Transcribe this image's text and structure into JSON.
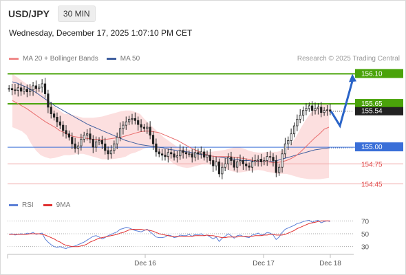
{
  "header": {
    "symbol": "USD/JPY",
    "timeframe": "30 MIN",
    "datetime": "Wednesday, December 17, 2025 1:07:10 PM CET"
  },
  "legend": {
    "ma20_label": "MA 20 + Bollinger Bands",
    "ma50_label": "MA 50",
    "ma20_color": "#f08a8a",
    "ma50_color": "#3f5f9f",
    "copyright": "Research © 2025 Trading Central"
  },
  "rsi_legend": {
    "rsi_label": "RSI",
    "ma_label": "9MA",
    "rsi_color": "#5b7fd6",
    "ma_color": "#e03030"
  },
  "chart_data": [
    {
      "type": "candlestick",
      "title": "USD/JPY 30 MIN",
      "y_range": [
        154.3,
        156.3
      ],
      "levels": [
        {
          "value": 156.1,
          "label": "156.10",
          "color": "#4aa30a",
          "kind": "resistance"
        },
        {
          "value": 155.65,
          "label": "155.65",
          "color": "#4aa30a",
          "kind": "resistance"
        },
        {
          "value": 155.54,
          "label": "155.54",
          "color": "#222222",
          "kind": "last-price"
        },
        {
          "value": 155.0,
          "label": "155.00",
          "color": "#3a6fd8",
          "kind": "pivot"
        },
        {
          "value": 154.75,
          "label": "154.75",
          "color": "#f0a0a0",
          "kind": "support"
        },
        {
          "value": 154.45,
          "label": "154.45",
          "color": "#f0a0a0",
          "kind": "support"
        }
      ],
      "x_ticks": [
        "Dec 16",
        "Dec 17",
        "Dec 18"
      ],
      "close": [
        155.88,
        155.86,
        155.85,
        155.89,
        155.84,
        155.87,
        155.83,
        155.86,
        155.92,
        155.88,
        155.9,
        155.95,
        155.8,
        155.6,
        155.5,
        155.45,
        155.38,
        155.33,
        155.25,
        155.2,
        155.15,
        155.05,
        154.98,
        155.02,
        155.12,
        155.18,
        155.2,
        155.12,
        155.0,
        155.08,
        155.1,
        155.05,
        154.95,
        154.9,
        154.95,
        155.05,
        155.15,
        155.28,
        155.33,
        155.38,
        155.42,
        155.43,
        155.4,
        155.34,
        155.3,
        155.28,
        155.3,
        155.18,
        155.05,
        154.93,
        154.9,
        154.88,
        154.86,
        154.92,
        154.9,
        154.85,
        154.87,
        154.95,
        154.92,
        154.9,
        154.9,
        154.85,
        154.92,
        154.9,
        154.93,
        154.85,
        154.88,
        154.8,
        154.72,
        154.78,
        154.6,
        154.7,
        154.75,
        154.85,
        154.8,
        154.7,
        154.78,
        154.8,
        154.75,
        154.72,
        154.7,
        154.78,
        154.8,
        154.82,
        154.78,
        154.8,
        154.86,
        154.85,
        154.8,
        154.62,
        154.7,
        154.9,
        155.05,
        155.1,
        155.2,
        155.32,
        155.42,
        155.48,
        155.55,
        155.58,
        155.62,
        155.55,
        155.58,
        155.6,
        155.52,
        155.55,
        155.56,
        155.54
      ],
      "ma20": [
        155.7,
        155.66,
        155.62,
        155.58,
        155.53,
        155.48,
        155.43,
        155.38,
        155.34,
        155.3,
        155.25,
        155.22,
        155.18,
        155.16,
        155.15,
        155.14,
        155.13,
        155.12,
        155.12,
        155.11,
        155.12,
        155.13,
        155.14,
        155.15,
        155.17,
        155.19,
        155.21,
        155.23,
        155.24,
        155.24,
        155.23,
        155.22,
        155.19,
        155.16,
        155.13,
        155.1,
        155.06,
        155.02,
        154.98,
        154.95,
        154.92,
        154.89,
        154.87,
        154.86,
        154.86,
        154.86,
        154.86,
        154.85,
        154.84,
        154.83,
        154.82,
        154.8,
        154.79,
        154.78,
        154.78,
        154.77,
        154.77,
        154.78,
        154.8,
        154.83,
        154.87,
        154.93,
        155.0,
        155.07,
        155.14,
        155.2,
        155.27,
        155.3
      ],
      "ma50": [
        155.98,
        155.96,
        155.93,
        155.9,
        155.86,
        155.82,
        155.77,
        155.72,
        155.67,
        155.62,
        155.58,
        155.54,
        155.5,
        155.46,
        155.42,
        155.38,
        155.34,
        155.31,
        155.28,
        155.25,
        155.22,
        155.19,
        155.16,
        155.13,
        155.1,
        155.08,
        155.06,
        155.04,
        155.03,
        155.02,
        155.01,
        155.0,
        154.99,
        154.97,
        154.96,
        154.95,
        154.94,
        154.93,
        154.92,
        154.9,
        154.89,
        154.88,
        154.87,
        154.86,
        154.85,
        154.84,
        154.83,
        154.82,
        154.81,
        154.8,
        154.8,
        154.79,
        154.78,
        154.78,
        154.78,
        154.79,
        154.8,
        154.82,
        154.84,
        154.86,
        154.88,
        154.9,
        154.92,
        154.94,
        154.96,
        154.97,
        154.98,
        154.99
      ],
      "bb_upper": [
        156.1,
        156.05,
        156.0,
        155.95,
        155.92,
        155.9,
        155.85,
        155.75,
        155.65,
        155.6,
        155.55,
        155.5,
        155.5,
        155.48,
        155.46,
        155.44,
        155.44,
        155.44,
        155.45,
        155.46,
        155.48,
        155.5,
        155.52,
        155.54,
        155.55,
        155.55,
        155.53,
        155.5,
        155.42,
        155.35,
        155.28,
        155.22,
        155.15,
        155.1,
        155.05,
        155.0,
        154.98,
        154.97,
        154.96,
        154.95,
        154.93,
        154.93,
        154.93,
        154.94,
        154.95,
        154.96,
        154.98,
        155.0,
        155.0,
        154.98,
        154.95,
        154.93,
        154.92,
        154.92,
        154.93,
        154.93,
        154.93,
        154.95,
        154.98,
        155.05,
        155.15,
        155.28,
        155.4,
        155.5,
        155.58,
        155.62,
        155.65,
        155.66
      ],
      "bb_lower": [
        155.3,
        155.27,
        155.24,
        155.18,
        155.05,
        154.95,
        154.88,
        154.85,
        154.83,
        154.84,
        154.86,
        154.88,
        154.88,
        154.89,
        154.9,
        154.9,
        154.88,
        154.86,
        154.84,
        154.82,
        154.82,
        154.82,
        154.83,
        154.84,
        154.86,
        154.9,
        154.92,
        154.95,
        154.98,
        155.0,
        154.98,
        154.93,
        154.88,
        154.82,
        154.76,
        154.72,
        154.7,
        154.69,
        154.7,
        154.72,
        154.74,
        154.76,
        154.76,
        154.75,
        154.72,
        154.68,
        154.65,
        154.63,
        154.62,
        154.63,
        154.64,
        154.65,
        154.66,
        154.65,
        154.63,
        154.62,
        154.6,
        154.6,
        154.6,
        154.58,
        154.56,
        154.54,
        154.53,
        154.52,
        154.52,
        154.52,
        154.53,
        154.54
      ]
    },
    {
      "type": "line",
      "title": "RSI",
      "y_range": [
        20,
        80
      ],
      "y_ticks": [
        70,
        50,
        30
      ],
      "rsi": [
        49,
        50,
        48,
        49,
        50,
        49,
        51,
        50,
        52,
        49,
        50,
        51,
        42,
        37,
        33,
        30,
        29,
        30,
        28,
        27,
        29,
        30,
        31,
        33,
        35,
        37,
        40,
        43,
        46,
        47,
        45,
        42,
        44,
        47,
        49,
        51,
        53,
        57,
        58,
        60,
        59,
        57,
        55,
        54,
        53,
        55,
        57,
        53,
        49,
        45,
        44,
        44,
        45,
        48,
        47,
        44,
        45,
        48,
        47,
        47,
        49,
        46,
        49,
        48,
        50,
        47,
        48,
        45,
        42,
        45,
        38,
        43,
        46,
        50,
        47,
        43,
        47,
        48,
        46,
        45,
        44,
        48,
        49,
        51,
        48,
        49,
        52,
        51,
        48,
        41,
        45,
        52,
        57,
        59,
        61,
        63,
        66,
        67,
        69,
        70,
        71,
        68,
        70,
        71,
        67,
        69,
        70,
        69
      ],
      "ma9": [
        49,
        49,
        49,
        49,
        49,
        49,
        49,
        50,
        50,
        50,
        50,
        49,
        48,
        46,
        44,
        42,
        39,
        37,
        34,
        32,
        31,
        30,
        30,
        30,
        31,
        32,
        34,
        37,
        39,
        41,
        43,
        44,
        45,
        46,
        47,
        48,
        49,
        51,
        52,
        54,
        56,
        57,
        57,
        57,
        57,
        56,
        56,
        55,
        54,
        52,
        50,
        49,
        48,
        47,
        46,
        46,
        46,
        46,
        46,
        46,
        46,
        46,
        47,
        47,
        47,
        47,
        48,
        47,
        47,
        46,
        45,
        44,
        44,
        45,
        45,
        45,
        45,
        46,
        46,
        46,
        46,
        46,
        47,
        47,
        47,
        48,
        48,
        49,
        49,
        48,
        48,
        48,
        49,
        51,
        53,
        55,
        58,
        60,
        62,
        64,
        66,
        67,
        68,
        69,
        70,
        70,
        70,
        70
      ]
    }
  ]
}
